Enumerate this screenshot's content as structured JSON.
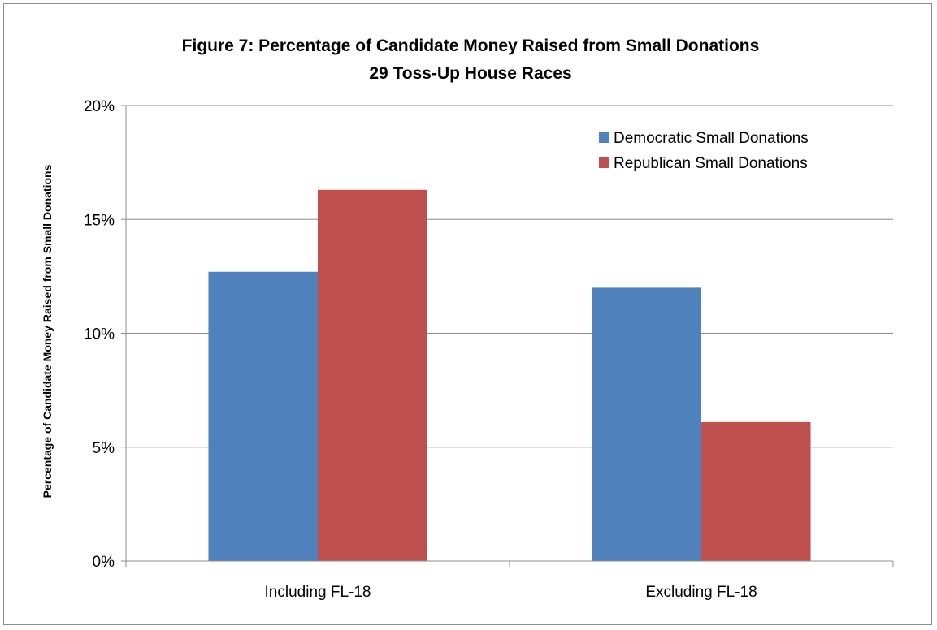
{
  "chart_data": {
    "type": "bar",
    "title": "Figure 7: Percentage of Candidate Money Raised from Small Donations",
    "subtitle": "29 Toss-Up House Races",
    "xlabel": "",
    "ylabel": "Percentage of Candidate Money Raised from Small Donations",
    "categories": [
      "Including FL-18",
      "Excluding FL-18"
    ],
    "series": [
      {
        "name": "Democratic Small Donations",
        "color": "#4f81bd",
        "values": [
          12.7,
          12.0
        ]
      },
      {
        "name": "Republican Small Donations",
        "color": "#c0504d",
        "values": [
          16.3,
          6.1
        ]
      }
    ],
    "ylim": [
      0,
      20
    ],
    "yticks": [
      0,
      5,
      10,
      15,
      20
    ],
    "ytick_labels": [
      "0%",
      "5%",
      "10%",
      "15%",
      "20%"
    ],
    "grid": true,
    "legend_position": "top-right"
  }
}
